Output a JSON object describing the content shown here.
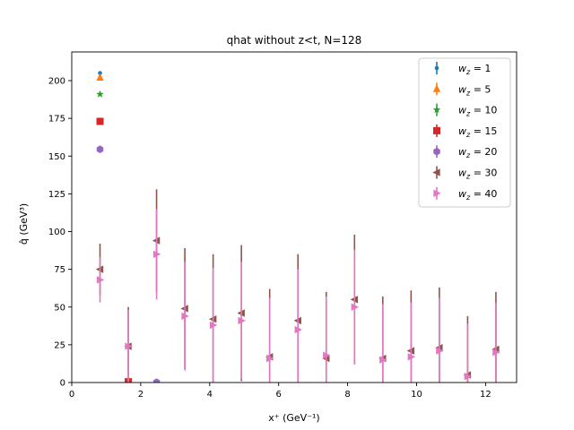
{
  "chart_data": {
    "type": "scatter",
    "title": "qhat without z<t, N=128",
    "xlabel": "x⁺ (GeV⁻¹)",
    "ylabel": "q̂ (GeV³)",
    "xlim": [
      0,
      12.9
    ],
    "ylim": [
      0,
      219
    ],
    "xticks": [
      0,
      2,
      4,
      6,
      8,
      10,
      12
    ],
    "yticks": [
      0,
      25,
      50,
      75,
      100,
      125,
      150,
      175,
      200
    ],
    "grid": false,
    "legend_position": "top-right",
    "series": [
      {
        "name": "w_z = 1",
        "label_base": "w",
        "label_sub": "z",
        "label_val": "1",
        "color": "#1f77b4",
        "marker": "circle-small",
        "points": [
          {
            "x": 0.82,
            "y": 205,
            "err": 0.5
          }
        ]
      },
      {
        "name": "w_z = 5",
        "label_base": "w",
        "label_sub": "z",
        "label_val": "5",
        "color": "#ff7f0e",
        "marker": "triangle-up",
        "points": [
          {
            "x": 0.82,
            "y": 202,
            "err": 0.5
          }
        ]
      },
      {
        "name": "w_z = 10",
        "label_base": "w",
        "label_sub": "z",
        "label_val": "10",
        "color": "#2ca02c",
        "marker": "star",
        "points": [
          {
            "x": 0.82,
            "y": 191,
            "err": 0.5
          }
        ]
      },
      {
        "name": "w_z = 15",
        "label_base": "w",
        "label_sub": "z",
        "label_val": "15",
        "color": "#d62728",
        "marker": "square",
        "points": [
          {
            "x": 0.82,
            "y": 173,
            "err": 0.5
          },
          {
            "x": 1.64,
            "y": 0.5,
            "err": 0.5
          }
        ]
      },
      {
        "name": "w_z = 20",
        "label_base": "w",
        "label_sub": "z",
        "label_val": "20",
        "color": "#9467bd",
        "marker": "hexagon",
        "points": [
          {
            "x": 0.82,
            "y": 154.5,
            "err": 0.5
          },
          {
            "x": 2.46,
            "y": 0.2,
            "err": 0.3
          }
        ]
      },
      {
        "name": "w_z = 30",
        "label_base": "w",
        "label_sub": "z",
        "label_val": "30",
        "color": "#8c564b",
        "marker": "triangle-left",
        "points": [
          {
            "x": 0.82,
            "y": 75,
            "err": 17
          },
          {
            "x": 1.64,
            "y": 24,
            "err": 26
          },
          {
            "x": 2.46,
            "y": 94,
            "err": 34
          },
          {
            "x": 3.28,
            "y": 49,
            "err": 40
          },
          {
            "x": 4.1,
            "y": 42,
            "err": 43
          },
          {
            "x": 4.92,
            "y": 46,
            "err": 45
          },
          {
            "x": 5.74,
            "y": 17,
            "err": 45
          },
          {
            "x": 6.56,
            "y": 41,
            "err": 44
          },
          {
            "x": 7.38,
            "y": 16,
            "err": 44
          },
          {
            "x": 8.2,
            "y": 55,
            "err": 43
          },
          {
            "x": 9.02,
            "y": 16,
            "err": 41
          },
          {
            "x": 9.84,
            "y": 21,
            "err": 40
          },
          {
            "x": 10.66,
            "y": 23,
            "err": 40
          },
          {
            "x": 11.48,
            "y": 5,
            "err": 39
          },
          {
            "x": 12.3,
            "y": 22,
            "err": 38
          }
        ]
      },
      {
        "name": "w_z = 40",
        "label_base": "w",
        "label_sub": "z",
        "label_val": "40",
        "color": "#e377c2",
        "marker": "triangle-right",
        "points": [
          {
            "x": 0.82,
            "y": 68,
            "err": 15
          },
          {
            "x": 1.64,
            "y": 24,
            "err": 24
          },
          {
            "x": 2.46,
            "y": 85,
            "err": 30
          },
          {
            "x": 3.28,
            "y": 44,
            "err": 36
          },
          {
            "x": 4.1,
            "y": 38,
            "err": 38
          },
          {
            "x": 4.92,
            "y": 41,
            "err": 39
          },
          {
            "x": 5.74,
            "y": 16,
            "err": 40
          },
          {
            "x": 6.56,
            "y": 35,
            "err": 40
          },
          {
            "x": 7.38,
            "y": 18,
            "err": 39
          },
          {
            "x": 8.2,
            "y": 50,
            "err": 38
          },
          {
            "x": 9.02,
            "y": 15,
            "err": 37
          },
          {
            "x": 9.84,
            "y": 17,
            "err": 36
          },
          {
            "x": 10.66,
            "y": 21,
            "err": 35
          },
          {
            "x": 11.48,
            "y": 4,
            "err": 35
          },
          {
            "x": 12.3,
            "y": 20,
            "err": 33
          }
        ]
      }
    ]
  }
}
